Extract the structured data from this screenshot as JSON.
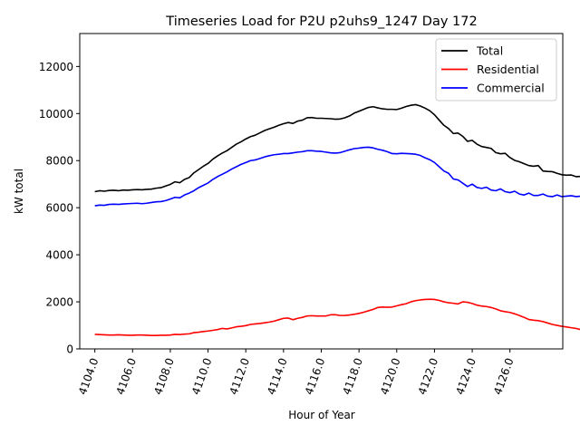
{
  "chart_data": {
    "type": "line",
    "title": "Timeseries Load for P2U p2uhs9_1247  Day 172",
    "xlabel": "Hour of Year",
    "ylabel": "kW total",
    "xlim": [
      4103.2,
      4128.8
    ],
    "ylim": [
      0,
      13400
    ],
    "xticks": [
      4104,
      4106,
      4108,
      4110,
      4112,
      4114,
      4116,
      4118,
      4120,
      4122,
      4124,
      4126
    ],
    "xtick_labels": [
      "4104.0",
      "4106.0",
      "4108.0",
      "4110.0",
      "4112.0",
      "4114.0",
      "4116.0",
      "4118.0",
      "4120.0",
      "4122.0",
      "4124.0",
      "4126.0"
    ],
    "yticks": [
      0,
      2000,
      4000,
      6000,
      8000,
      10000,
      12000
    ],
    "ytick_labels": [
      "0",
      "2000",
      "4000",
      "6000",
      "8000",
      "10000",
      "12000"
    ],
    "grid": false,
    "legend_position": "top-right",
    "x_start": 4104,
    "x_step": 0.25,
    "series": [
      {
        "name": "Total",
        "color": "#000000",
        "values": [
          6680,
          6720,
          6700,
          6730,
          6740,
          6720,
          6750,
          6740,
          6760,
          6770,
          6760,
          6780,
          6790,
          6830,
          6850,
          6920,
          6990,
          7100,
          7060,
          7200,
          7280,
          7480,
          7620,
          7760,
          7880,
          8060,
          8200,
          8320,
          8420,
          8560,
          8700,
          8800,
          8920,
          9020,
          9080,
          9180,
          9280,
          9350,
          9420,
          9500,
          9570,
          9620,
          9580,
          9680,
          9720,
          9820,
          9830,
          9800,
          9800,
          9790,
          9780,
          9760,
          9770,
          9820,
          9900,
          10020,
          10100,
          10180,
          10260,
          10290,
          10240,
          10200,
          10180,
          10180,
          10170,
          10230,
          10300,
          10350,
          10380,
          10320,
          10230,
          10120,
          9950,
          9720,
          9500,
          9360,
          9150,
          9170,
          9030,
          8820,
          8860,
          8700,
          8600,
          8560,
          8520,
          8340,
          8290,
          8310,
          8130,
          8010,
          7950,
          7870,
          7790,
          7760,
          7790,
          7560,
          7540,
          7530,
          7460,
          7400,
          7380,
          7390,
          7320,
          7330
        ]
      },
      {
        "name": "Residential",
        "color": "#ff0000",
        "values": [
          620,
          610,
          600,
          590,
          590,
          600,
          590,
          580,
          580,
          590,
          590,
          580,
          570,
          570,
          580,
          580,
          590,
          620,
          610,
          630,
          640,
          690,
          710,
          740,
          760,
          790,
          820,
          870,
          850,
          890,
          940,
          960,
          990,
          1040,
          1060,
          1080,
          1110,
          1140,
          1180,
          1240,
          1300,
          1310,
          1240,
          1300,
          1340,
          1400,
          1410,
          1400,
          1400,
          1400,
          1450,
          1450,
          1420,
          1420,
          1440,
          1470,
          1510,
          1560,
          1620,
          1680,
          1760,
          1780,
          1770,
          1780,
          1830,
          1880,
          1920,
          2000,
          2050,
          2080,
          2100,
          2110,
          2100,
          2060,
          2000,
          1960,
          1940,
          1910,
          2000,
          1980,
          1930,
          1860,
          1820,
          1800,
          1760,
          1700,
          1620,
          1580,
          1550,
          1490,
          1420,
          1340,
          1250,
          1220,
          1200,
          1160,
          1100,
          1040,
          1000,
          960,
          930,
          900,
          870,
          820
        ]
      },
      {
        "name": "Commercial",
        "color": "#0000ff",
        "values": [
          6080,
          6110,
          6100,
          6140,
          6150,
          6140,
          6160,
          6170,
          6180,
          6190,
          6170,
          6190,
          6220,
          6250,
          6260,
          6300,
          6370,
          6440,
          6420,
          6540,
          6620,
          6720,
          6850,
          6950,
          7050,
          7200,
          7320,
          7420,
          7520,
          7640,
          7740,
          7840,
          7920,
          8000,
          8030,
          8090,
          8160,
          8210,
          8250,
          8270,
          8300,
          8300,
          8330,
          8360,
          8380,
          8420,
          8420,
          8400,
          8390,
          8360,
          8330,
          8320,
          8340,
          8400,
          8460,
          8510,
          8530,
          8560,
          8570,
          8540,
          8480,
          8440,
          8380,
          8300,
          8290,
          8310,
          8300,
          8290,
          8270,
          8220,
          8120,
          8040,
          7920,
          7740,
          7560,
          7460,
          7220,
          7180,
          7040,
          6900,
          7000,
          6860,
          6820,
          6870,
          6750,
          6720,
          6800,
          6680,
          6640,
          6700,
          6580,
          6540,
          6620,
          6520,
          6520,
          6580,
          6490,
          6470,
          6540,
          6470,
          6490,
          6510,
          6470,
          6490
        ]
      }
    ]
  }
}
